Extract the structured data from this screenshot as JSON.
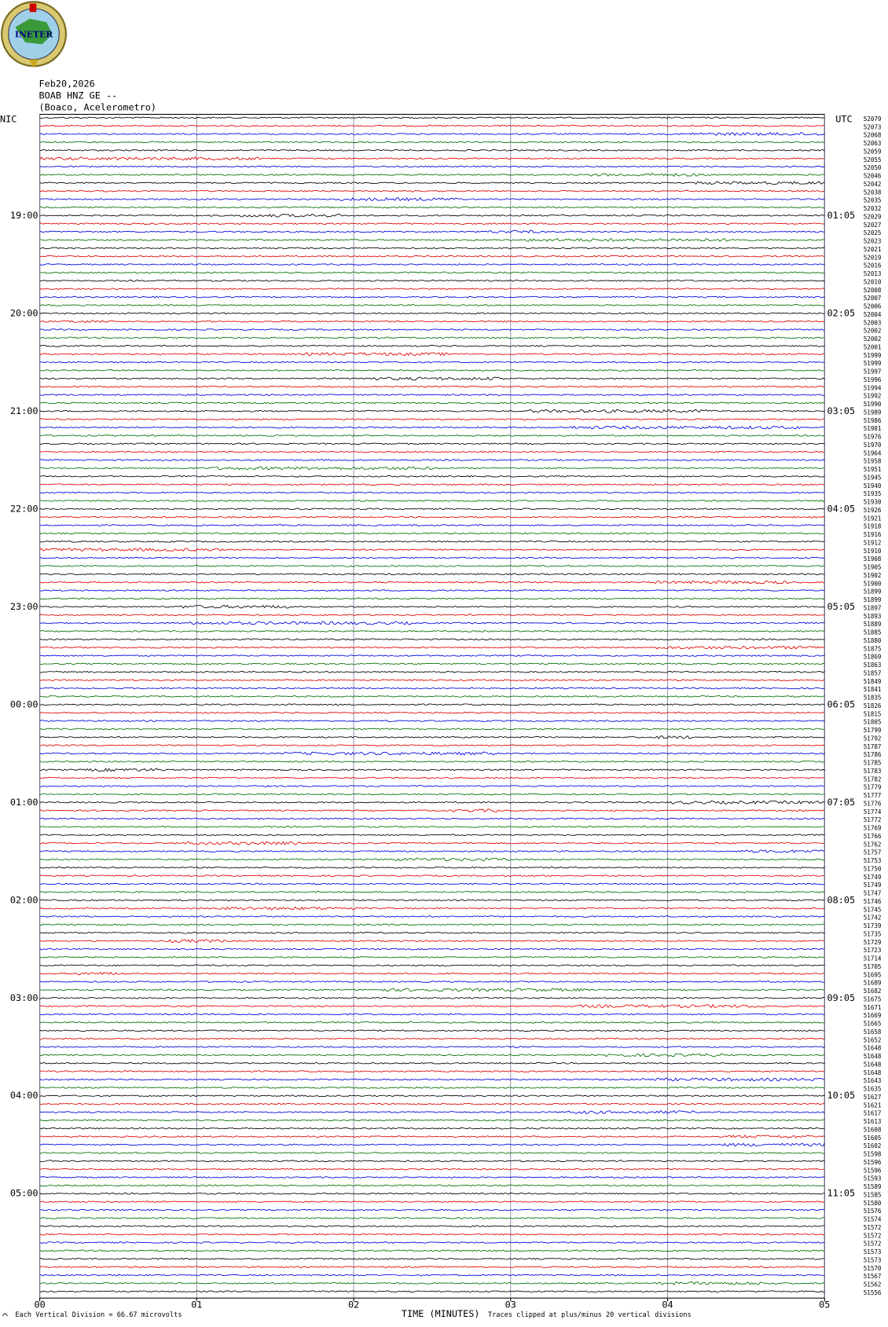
{
  "chart_data": {
    "type": "helicorder",
    "logo": "INETER",
    "date": "Feb20,2026",
    "station": "BOAB HNZ GE --",
    "location": "(Boaco, Acelerometro)",
    "left_zone": "NIC",
    "right_zone": "UTC",
    "local_hours": [
      "19:00",
      "20:00",
      "21:00",
      "22:00",
      "23:00",
      "00:00",
      "01:00",
      "02:00",
      "03:00",
      "04:00",
      "05:00"
    ],
    "utc_hours": [
      "01:05",
      "02:05",
      "03:05",
      "04:05",
      "05:05",
      "06:05",
      "07:05",
      "08:05",
      "09:05",
      "10:05",
      "11:05"
    ],
    "trace_colors": [
      "#000000",
      "#e00000",
      "#0000e0",
      "#007000"
    ],
    "trace_counts": [
      52079,
      52073,
      52068,
      52063,
      52059,
      52055,
      52050,
      52046,
      52042,
      52038,
      52035,
      52032,
      52029,
      52027,
      52025,
      52023,
      52021,
      52019,
      52016,
      52013,
      52010,
      52008,
      52007,
      52006,
      52004,
      52003,
      52002,
      52002,
      52001,
      51999,
      51999,
      51997,
      51996,
      51994,
      51992,
      51990,
      51989,
      51986,
      51981,
      51976,
      51970,
      51964,
      51958,
      51951,
      51945,
      51940,
      51935,
      51930,
      51926,
      51921,
      51918,
      51916,
      51912,
      51910,
      51908,
      51905,
      51902,
      51900,
      51899,
      51899,
      51897,
      51893,
      51889,
      51885,
      51880,
      51875,
      51869,
      51863,
      51857,
      51849,
      51841,
      51835,
      51826,
      51815,
      51805,
      51799,
      51792,
      51787,
      51786,
      51785,
      51783,
      51782,
      51779,
      51777,
      51776,
      51774,
      51772,
      51769,
      51766,
      51762,
      51757,
      51753,
      51750,
      51749,
      51749,
      51747,
      51746,
      51745,
      51742,
      51739,
      51735,
      51729,
      51723,
      51714,
      51705,
      51695,
      51689,
      51682,
      51675,
      51671,
      51669,
      51665,
      51658,
      51652,
      51648,
      51648,
      51648,
      51648,
      51643,
      51635,
      51627,
      51621,
      51617,
      51613,
      51608,
      51605,
      51602,
      51598,
      51596,
      51596,
      51593,
      51589,
      51585,
      51580,
      51576,
      51574,
      51572,
      51572,
      51572,
      51573,
      51573,
      51570,
      51567,
      51562,
      51556
    ],
    "xlim": [
      0,
      5
    ],
    "xticks": [
      {
        "value": 0,
        "label": "00"
      },
      {
        "value": 1,
        "label": "01"
      },
      {
        "value": 2,
        "label": "02"
      },
      {
        "value": 3,
        "label": "03"
      },
      {
        "value": 4,
        "label": "04"
      },
      {
        "value": 5,
        "label": "05"
      }
    ],
    "x_label": "TIME (MINUTES)",
    "scale_note": "Each Vertical Division =   66.67 microvolts",
    "clip_note": "Traces clipped at plus/minus 20 vertical divisions",
    "grid": true
  }
}
